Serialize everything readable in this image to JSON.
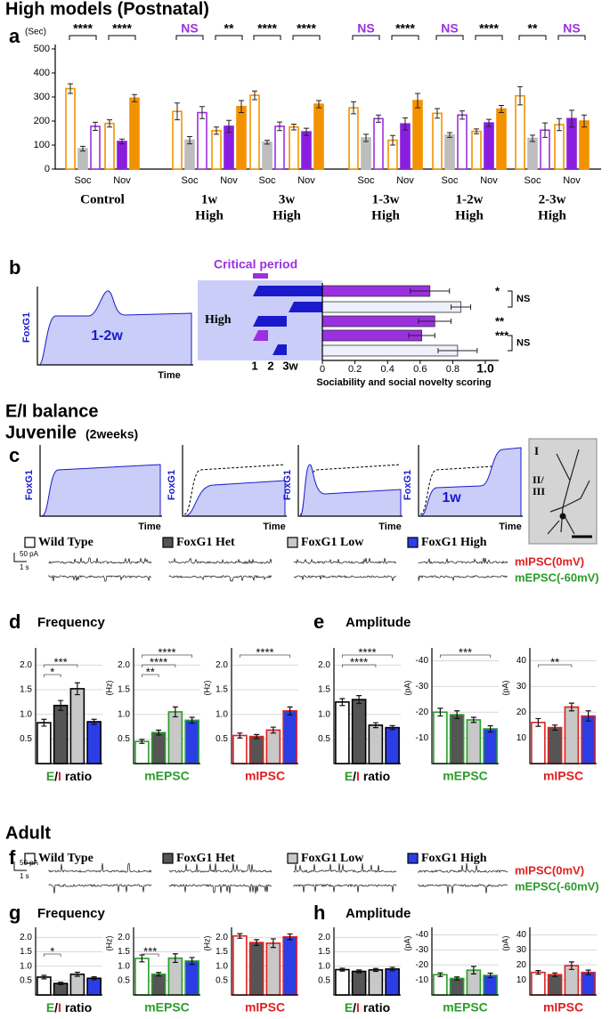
{
  "labels": {
    "title_high": "High models (Postnatal)",
    "panels": [
      "a",
      "b",
      "c",
      "d",
      "e",
      "f",
      "g",
      "h"
    ],
    "b": {
      "critical_period": "Critical period",
      "high": "High",
      "foxg1": "FoxG1",
      "time": "Time",
      "window": "1-2w",
      "timeline": [
        "1",
        "2",
        "3w"
      ]
    },
    "ei_title": "E/I balance",
    "juvenile": "Juvenile",
    "juvenile_age": "(2weeks)",
    "adult": "Adult",
    "c": {
      "window": "1w",
      "layers": [
        "I",
        "II/",
        "III"
      ]
    },
    "legend": [
      "Wild Type",
      "FoxG1 Het",
      "FoxG1 Low",
      "FoxG1 High"
    ],
    "legend_colors": [
      "#ffffff",
      "#555555",
      "#c8c8c8",
      "#2b3ee6"
    ],
    "scale": [
      "50 pA",
      "1 s"
    ],
    "traces": [
      "mIPSC(0mV)",
      "mEPSC(-60mV)"
    ],
    "trace_colors": [
      "#e02020",
      "#2a9d2a"
    ],
    "frequency": "Frequency",
    "amplitude": "Amplitude"
  },
  "chart_data": [
    {
      "type": "grouped_bar",
      "ylabel": "(Sec)",
      "ylim": [
        0,
        500
      ],
      "yticks": [
        0,
        100,
        200,
        300,
        400,
        500
      ],
      "categories": [
        "Soc",
        "Nov",
        "Soc",
        "Nov",
        "Soc",
        "Nov",
        "Soc",
        "Nov",
        "Soc",
        "Nov",
        "Soc",
        "Nov"
      ],
      "groups": [
        [
          "Control"
        ],
        [
          "1w",
          "High"
        ],
        [
          "3w",
          "High"
        ],
        [
          "1-3w",
          "High"
        ],
        [
          "1-2w",
          "High"
        ],
        [
          "2-3w",
          "High"
        ]
      ],
      "series": [
        {
          "values": [
            335,
            190,
            240,
            160,
            307,
            175,
            255,
            120,
            232,
            157,
            305,
            185
          ],
          "errors": [
            20,
            15,
            35,
            15,
            18,
            12,
            25,
            20,
            20,
            10,
            38,
            25
          ],
          "colors": [
            "#f39200",
            "#f39200",
            "#f39200",
            "#f39200",
            "#f39200",
            "#f39200",
            "#f39200",
            "#f39200",
            "#f39200",
            "#f39200",
            "#f39200",
            "#f39200"
          ],
          "filled": [
            false,
            false,
            false,
            false,
            false,
            false,
            false,
            false,
            false,
            false,
            false,
            false
          ]
        },
        {
          "values": [
            85,
            115,
            120,
            178,
            112,
            155,
            130,
            188,
            142,
            192,
            128,
            210
          ],
          "errors": [
            10,
            10,
            15,
            25,
            8,
            15,
            15,
            25,
            10,
            15,
            13,
            35
          ],
          "colors": [
            "#bdbdbd",
            "#8a1ee0",
            "#bdbdbd",
            "#8a1ee0",
            "#bdbdbd",
            "#8a1ee0",
            "#bdbdbd",
            "#8a1ee0",
            "#bdbdbd",
            "#8a1ee0",
            "#bdbdbd",
            "#8a1ee0"
          ],
          "filled": [
            true,
            true,
            true,
            true,
            true,
            true,
            true,
            true,
            true,
            true,
            true,
            true
          ]
        },
        {
          "values": [
            178,
            295,
            235,
            260,
            178,
            270,
            210,
            285,
            225,
            250,
            162,
            200
          ],
          "errors": [
            17,
            15,
            25,
            25,
            18,
            15,
            15,
            30,
            17,
            15,
            30,
            25
          ],
          "colors": [
            "#9b30e0",
            "#f39200",
            "#9b30e0",
            "#f39200",
            "#9b30e0",
            "#f39200",
            "#9b30e0",
            "#f39200",
            "#9b30e0",
            "#f39200",
            "#9b30e0",
            "#f39200"
          ],
          "filled": [
            false,
            true,
            false,
            true,
            false,
            true,
            false,
            true,
            false,
            true,
            false,
            true
          ]
        }
      ],
      "significance": [
        "****",
        "****",
        "NS",
        "**",
        "****",
        "****",
        "NS",
        "****",
        "NS",
        "****",
        "**",
        "NS"
      ],
      "significance_colors": [
        "#000000",
        "#000000",
        "#9b30e0",
        "#000000",
        "#000000",
        "#000000",
        "#9b30e0",
        "#000000",
        "#9b30e0",
        "#000000",
        "#000000",
        "#9b30e0"
      ]
    },
    {
      "type": "hbar",
      "xlabel": "Sociability and social novelty scoring",
      "xlim": [
        0,
        1
      ],
      "xticks": [
        0,
        0.2,
        0.4,
        0.6,
        0.8,
        {
          "value": 1,
          "label": "1.0"
        }
      ],
      "values": [
        0.66,
        0.85,
        0.69,
        0.61,
        0.83
      ],
      "errors": [
        0.12,
        0.06,
        0.1,
        0.08,
        0.12
      ],
      "colors": [
        "#9b30e0",
        "#eef0fb",
        "#9b30e0",
        "#9b30e0",
        "#eef0fb"
      ],
      "significance": [
        "*",
        null,
        "**",
        "***",
        null
      ],
      "ns": [
        "NS",
        "NS"
      ]
    },
    {
      "type": "bar",
      "ylim": [
        0,
        2.35
      ],
      "yticks": [
        0.5,
        {
          "value": 1,
          "label": "1.0"
        },
        1.5,
        {
          "value": 2,
          "label": "2.0"
        }
      ],
      "grid": true,
      "values": [
        0.83,
        1.18,
        1.52,
        0.85
      ],
      "errors": [
        0.07,
        0.1,
        0.12,
        0.05
      ],
      "colors": [
        "#ffffff",
        "#555555",
        "#c8c8c8",
        "#2b3ee6"
      ],
      "edge_color": "#000000",
      "xlabel_parts": [
        "E",
        "/",
        "I",
        " ratio"
      ],
      "xlabel_colors": [
        "#2a9d2a",
        "#000000",
        "#e02020",
        "#000000"
      ],
      "brackets": [
        "*",
        "***",
        null
      ]
    },
    {
      "type": "bar",
      "ylabel": "(Hz)",
      "ylim": [
        0,
        2.35
      ],
      "yticks": [
        0.5,
        {
          "value": 1,
          "label": "1.0"
        },
        1.5,
        {
          "value": 2,
          "label": "2.0"
        }
      ],
      "grid": true,
      "values": [
        0.45,
        0.63,
        1.05,
        0.88
      ],
      "errors": [
        0.04,
        0.05,
        0.1,
        0.06
      ],
      "colors": [
        "#ffffff",
        "#555555",
        "#c8c8c8",
        "#2b3ee6"
      ],
      "edge_color": "#2a9d2a",
      "xlabel": "mEPSC",
      "xlabel_color": "#2a9d2a",
      "brackets": [
        "**",
        "****",
        "****"
      ]
    },
    {
      "type": "bar",
      "ylabel": "(Hz)",
      "ylim": [
        0,
        2.35
      ],
      "yticks": [
        0.5,
        {
          "value": 1,
          "label": "1.0"
        },
        1.5,
        {
          "value": 2,
          "label": "2.0"
        }
      ],
      "grid": true,
      "values": [
        0.57,
        0.55,
        0.68,
        1.07
      ],
      "errors": [
        0.05,
        0.04,
        0.06,
        0.08
      ],
      "colors": [
        "#ffffff",
        "#555555",
        "#c8c8c8",
        "#2b3ee6"
      ],
      "edge_color": "#e02020",
      "xlabel": "mIPSC",
      "xlabel_color": "#e02020",
      "brackets": [
        null,
        null,
        "****"
      ]
    },
    {
      "type": "bar",
      "ylim": [
        0,
        2.35
      ],
      "yticks": [
        0.5,
        {
          "value": 1,
          "label": "1.0"
        },
        1.5,
        {
          "value": 2,
          "label": "2.0"
        }
      ],
      "grid": true,
      "values": [
        1.25,
        1.3,
        0.78,
        0.73
      ],
      "errors": [
        0.07,
        0.08,
        0.05,
        0.04
      ],
      "colors": [
        "#ffffff",
        "#555555",
        "#c8c8c8",
        "#2b3ee6"
      ],
      "edge_color": "#000000",
      "xlabel_parts": [
        "E",
        "/",
        "I",
        " ratio"
      ],
      "xlabel_colors": [
        "#2a9d2a",
        "#000000",
        "#e02020",
        "#000000"
      ],
      "brackets": [
        null,
        "****",
        "****"
      ]
    },
    {
      "type": "bar",
      "ylabel": "(pA)",
      "ylim": [
        0,
        -45
      ],
      "yticks": [
        -10,
        -20,
        -30,
        -40
      ],
      "grid": true,
      "values": [
        -20,
        -19,
        -17,
        -13.5
      ],
      "errors": [
        1.5,
        1.5,
        1,
        1.2
      ],
      "colors": [
        "#ffffff",
        "#555555",
        "#c8c8c8",
        "#2b3ee6"
      ],
      "edge_color": "#2a9d2a",
      "xlabel": "mEPSC",
      "xlabel_color": "#2a9d2a",
      "brackets": [
        null,
        null,
        "***"
      ]
    },
    {
      "type": "bar",
      "ylabel": "(pA)",
      "ylim": [
        0,
        45
      ],
      "yticks": [
        10,
        20,
        30,
        40
      ],
      "grid": true,
      "values": [
        16,
        14,
        22,
        18.5
      ],
      "errors": [
        1.5,
        1,
        1.5,
        2
      ],
      "colors": [
        "#ffffff",
        "#555555",
        "#c8c8c8",
        "#2b3ee6"
      ],
      "edge_color": "#e02020",
      "xlabel": "mIPSC",
      "xlabel_color": "#e02020",
      "brackets": [
        null,
        "**",
        null
      ]
    },
    {
      "type": "bar",
      "ylim": [
        0,
        2.35
      ],
      "yticks": [
        0.5,
        {
          "value": 1,
          "label": "1.0"
        },
        1.5,
        {
          "value": 2,
          "label": "2.0"
        }
      ],
      "grid": true,
      "values": [
        0.62,
        0.4,
        0.72,
        0.58
      ],
      "errors": [
        0.06,
        0.04,
        0.07,
        0.05
      ],
      "colors": [
        "#ffffff",
        "#555555",
        "#c8c8c8",
        "#2b3ee6"
      ],
      "edge_color": "#000000",
      "xlabel_parts": [
        "E",
        "/",
        "I",
        " ratio"
      ],
      "xlabel_colors": [
        "#2a9d2a",
        "#000000",
        "#e02020",
        "#000000"
      ],
      "brackets": [
        "*",
        null,
        null
      ]
    },
    {
      "type": "bar",
      "ylabel": "(Hz)",
      "ylim": [
        0,
        2.35
      ],
      "yticks": [
        0.5,
        {
          "value": 1,
          "label": "1.0"
        },
        1.5,
        {
          "value": 2,
          "label": "2.0"
        }
      ],
      "grid": true,
      "values": [
        1.27,
        0.72,
        1.28,
        1.18
      ],
      "errors": [
        0.12,
        0.06,
        0.15,
        0.12
      ],
      "colors": [
        "#ffffff",
        "#555555",
        "#c8c8c8",
        "#2b3ee6"
      ],
      "edge_color": "#2a9d2a",
      "xlabel": "mEPSC",
      "xlabel_color": "#2a9d2a",
      "brackets": [
        "***",
        null,
        null
      ]
    },
    {
      "type": "bar",
      "ylabel": "(Hz)",
      "ylim": [
        0,
        2.35
      ],
      "yticks": [
        0.5,
        {
          "value": 1,
          "label": "1.0"
        },
        1.5,
        {
          "value": 2,
          "label": "2.0"
        }
      ],
      "grid": true,
      "values": [
        2.05,
        1.82,
        1.8,
        2.02
      ],
      "errors": [
        0.08,
        0.1,
        0.15,
        0.1
      ],
      "colors": [
        "#ffffff",
        "#555555",
        "#c8c8c8",
        "#2b3ee6"
      ],
      "edge_color": "#e02020",
      "xlabel": "mIPSC",
      "xlabel_color": "#e02020"
    },
    {
      "type": "bar",
      "ylim": [
        0,
        2.35
      ],
      "yticks": [
        0.5,
        {
          "value": 1,
          "label": "1.0"
        },
        1.5,
        {
          "value": 2,
          "label": "2.0"
        }
      ],
      "grid": true,
      "values": [
        0.88,
        0.82,
        0.87,
        0.9
      ],
      "errors": [
        0.05,
        0.05,
        0.05,
        0.06
      ],
      "colors": [
        "#ffffff",
        "#555555",
        "#c8c8c8",
        "#2b3ee6"
      ],
      "edge_color": "#000000",
      "xlabel_parts": [
        "E",
        "/",
        "I",
        " ratio"
      ],
      "xlabel_colors": [
        "#2a9d2a",
        "#000000",
        "#e02020",
        "#000000"
      ]
    },
    {
      "type": "bar",
      "ylabel": "(pA)",
      "ylim": [
        0,
        -45
      ],
      "yticks": [
        -10,
        -20,
        -30,
        -40
      ],
      "grid": true,
      "values": [
        -13.5,
        -11,
        -16.5,
        -13
      ],
      "errors": [
        1.2,
        1,
        2.5,
        1.5
      ],
      "colors": [
        "#ffffff",
        "#555555",
        "#c8c8c8",
        "#2b3ee6"
      ],
      "edge_color": "#2a9d2a",
      "xlabel": "mEPSC",
      "xlabel_color": "#2a9d2a"
    },
    {
      "type": "bar",
      "ylabel": "(pA)",
      "ylim": [
        0,
        45
      ],
      "yticks": [
        10,
        20,
        30,
        40
      ],
      "grid": true,
      "values": [
        15,
        13.5,
        19.5,
        15
      ],
      "errors": [
        1.2,
        1.2,
        2.5,
        1.5
      ],
      "colors": [
        "#ffffff",
        "#555555",
        "#c8c8c8",
        "#2b3ee6"
      ],
      "edge_color": "#e02020",
      "xlabel": "mIPSC",
      "xlabel_color": "#e02020"
    }
  ]
}
